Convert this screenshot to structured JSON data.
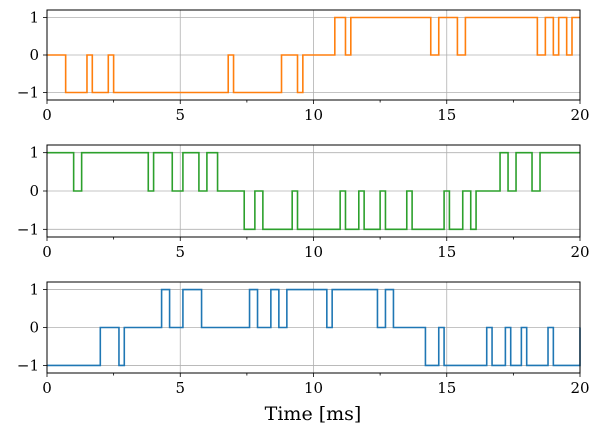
{
  "chart_data": [
    {
      "type": "line",
      "step": true,
      "color": "#ff7f0e",
      "xlim": [
        0,
        20
      ],
      "ylim": [
        -1.2,
        1.2
      ],
      "x_ticks": [
        "0",
        "5",
        "10",
        "15",
        "20"
      ],
      "y_ticks": [
        "1",
        "0",
        "−1"
      ],
      "grid": true,
      "series": [
        {
          "points": [
            [
              0,
              0
            ],
            [
              0.7,
              -1
            ],
            [
              1.5,
              0
            ],
            [
              1.7,
              -1
            ],
            [
              2.3,
              0
            ],
            [
              2.5,
              -1
            ],
            [
              6.8,
              0
            ],
            [
              7.0,
              -1
            ],
            [
              8.8,
              0
            ],
            [
              9.4,
              -1
            ],
            [
              9.6,
              0
            ],
            [
              10.8,
              1
            ],
            [
              11.2,
              0
            ],
            [
              11.4,
              1
            ],
            [
              14.4,
              0
            ],
            [
              14.7,
              1
            ],
            [
              15.4,
              0
            ],
            [
              15.7,
              1
            ],
            [
              18.4,
              0
            ],
            [
              18.7,
              1
            ],
            [
              19.0,
              0
            ],
            [
              19.2,
              1
            ],
            [
              19.5,
              0
            ],
            [
              19.7,
              1
            ],
            [
              20,
              1
            ]
          ]
        }
      ]
    },
    {
      "type": "line",
      "step": true,
      "color": "#2ca02c",
      "xlim": [
        0,
        20
      ],
      "ylim": [
        -1.2,
        1.2
      ],
      "x_ticks": [
        "0",
        "5",
        "10",
        "15",
        "20"
      ],
      "y_ticks": [
        "1",
        "0",
        "−1"
      ],
      "grid": true,
      "series": [
        {
          "points": [
            [
              0,
              1
            ],
            [
              1.0,
              0
            ],
            [
              1.3,
              1
            ],
            [
              3.8,
              0
            ],
            [
              4.0,
              1
            ],
            [
              4.7,
              0
            ],
            [
              5.1,
              1
            ],
            [
              5.7,
              0
            ],
            [
              6.0,
              1
            ],
            [
              6.4,
              0
            ],
            [
              7.4,
              -1
            ],
            [
              7.8,
              0
            ],
            [
              8.1,
              -1
            ],
            [
              9.2,
              0
            ],
            [
              9.4,
              -1
            ],
            [
              11.0,
              0
            ],
            [
              11.2,
              -1
            ],
            [
              11.7,
              0
            ],
            [
              11.9,
              -1
            ],
            [
              12.5,
              0
            ],
            [
              12.7,
              -1
            ],
            [
              13.5,
              0
            ],
            [
              13.7,
              -1
            ],
            [
              14.9,
              0
            ],
            [
              15.1,
              -1
            ],
            [
              15.6,
              0
            ],
            [
              15.9,
              -1
            ],
            [
              16.1,
              0
            ],
            [
              17.0,
              1
            ],
            [
              17.3,
              0
            ],
            [
              17.6,
              1
            ],
            [
              18.2,
              0
            ],
            [
              18.5,
              1
            ],
            [
              20,
              1
            ]
          ]
        }
      ]
    },
    {
      "type": "line",
      "step": true,
      "color": "#1f77b4",
      "xlim": [
        0,
        20
      ],
      "ylim": [
        -1.2,
        1.2
      ],
      "x_ticks": [
        "0",
        "5",
        "10",
        "15",
        "20"
      ],
      "y_ticks": [
        "1",
        "0",
        "−1"
      ],
      "xlabel": "Time [ms]",
      "grid": true,
      "series": [
        {
          "points": [
            [
              0,
              -1
            ],
            [
              2.0,
              0
            ],
            [
              2.7,
              -1
            ],
            [
              2.9,
              0
            ],
            [
              4.3,
              1
            ],
            [
              4.6,
              0
            ],
            [
              5.1,
              1
            ],
            [
              5.8,
              0
            ],
            [
              7.6,
              1
            ],
            [
              7.9,
              0
            ],
            [
              8.4,
              1
            ],
            [
              8.7,
              0
            ],
            [
              9.0,
              1
            ],
            [
              10.5,
              0
            ],
            [
              10.7,
              1
            ],
            [
              12.4,
              0
            ],
            [
              12.7,
              1
            ],
            [
              13.0,
              0
            ],
            [
              14.2,
              -1
            ],
            [
              14.7,
              0
            ],
            [
              14.9,
              -1
            ],
            [
              16.5,
              0
            ],
            [
              16.7,
              -1
            ],
            [
              17.2,
              0
            ],
            [
              17.4,
              -1
            ],
            [
              17.8,
              0
            ],
            [
              18.0,
              -1
            ],
            [
              18.8,
              0
            ],
            [
              19.0,
              -1
            ],
            [
              20,
              0
            ]
          ]
        }
      ]
    }
  ]
}
